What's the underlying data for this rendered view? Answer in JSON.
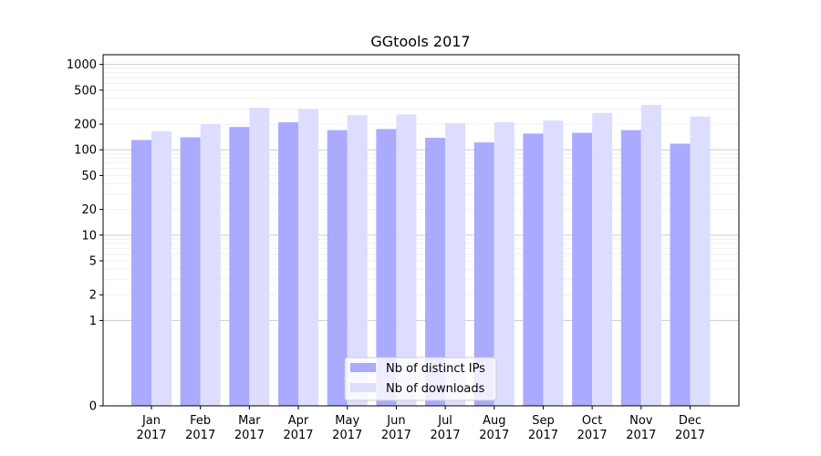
{
  "chart_data": {
    "type": "bar",
    "title": "GGtools 2017",
    "xlabel": "",
    "ylabel": "",
    "y_scale": "symlog",
    "ylim": [
      0,
      1300
    ],
    "y_ticks": [
      0,
      1,
      2,
      5,
      10,
      20,
      50,
      100,
      200,
      500,
      1000
    ],
    "grid": true,
    "legend_position": "bottom-center",
    "categories": [
      [
        "Jan",
        "2017"
      ],
      [
        "Feb",
        "2017"
      ],
      [
        "Mar",
        "2017"
      ],
      [
        "Apr",
        "2017"
      ],
      [
        "May",
        "2017"
      ],
      [
        "Jun",
        "2017"
      ],
      [
        "Jul",
        "2017"
      ],
      [
        "Aug",
        "2017"
      ],
      [
        "Sep",
        "2017"
      ],
      [
        "Oct",
        "2017"
      ],
      [
        "Nov",
        "2017"
      ],
      [
        "Dec",
        "2017"
      ]
    ],
    "series": [
      {
        "name": "Nb of distinct IPs",
        "color": "#aaaaff",
        "values": [
          130,
          140,
          185,
          210,
          170,
          175,
          138,
          122,
          155,
          158,
          170,
          118
        ]
      },
      {
        "name": "Nb of downloads",
        "color": "#ddddff",
        "values": [
          165,
          200,
          310,
          300,
          255,
          260,
          205,
          210,
          220,
          270,
          335,
          245
        ]
      }
    ]
  }
}
